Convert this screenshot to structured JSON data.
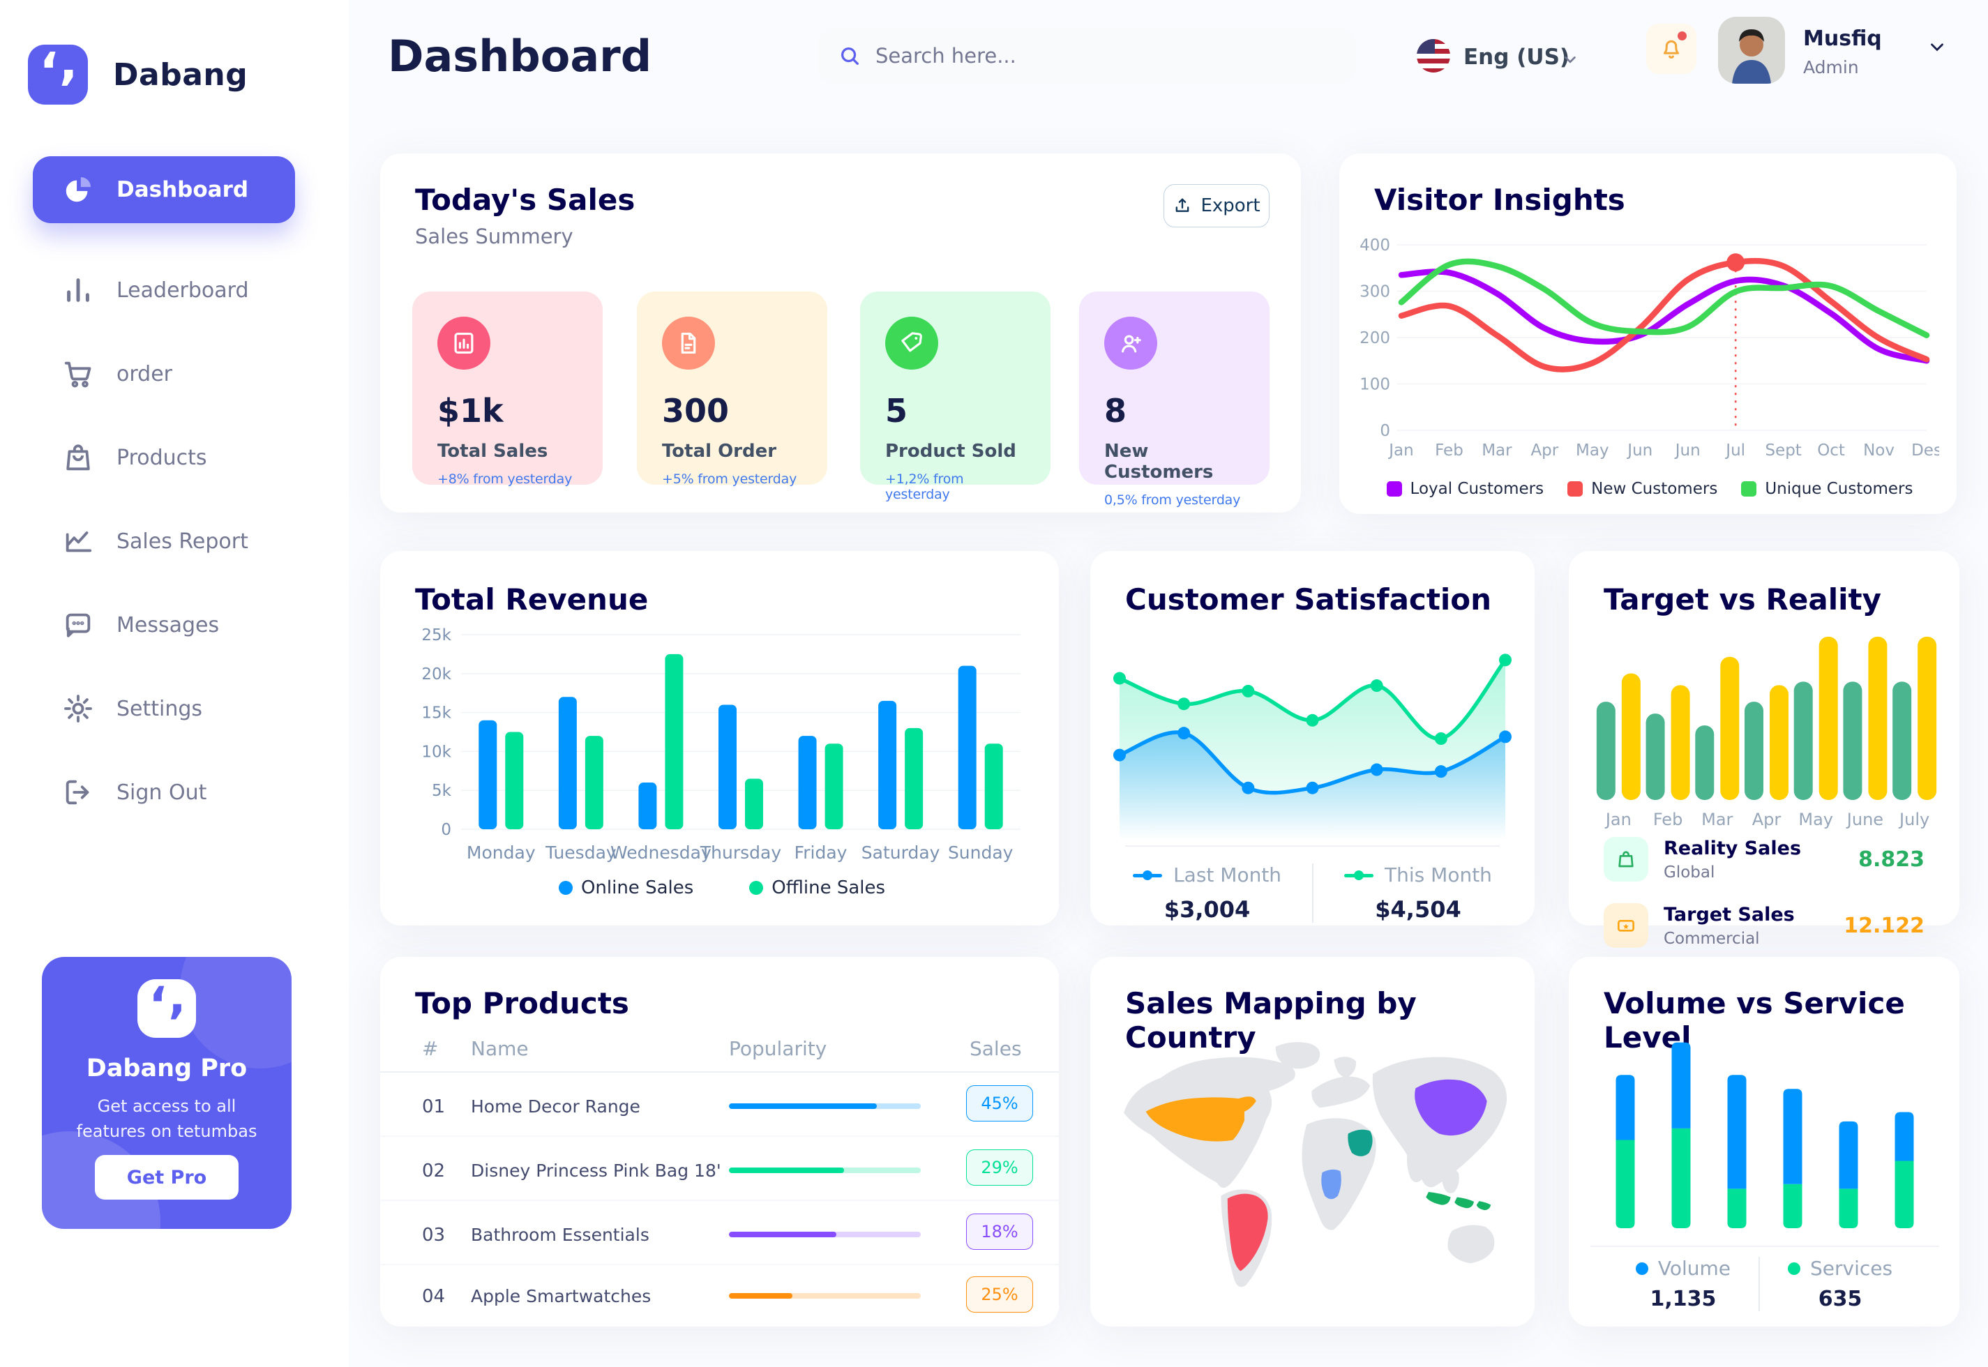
{
  "app": {
    "page_bg": "#FAFBFF",
    "card_bg": "#FFFFFF",
    "accent": "#5D5FEF",
    "navy": "#151D48",
    "gray_text": "#737791",
    "axis_text": "#96A5B8"
  },
  "sidebar": {
    "logo_label": "Dabang",
    "active_item": {
      "label": "Dashboard",
      "icon": "pie-chart-icon"
    },
    "items": [
      {
        "label": "Leaderboard",
        "icon": "bar-chart-icon"
      },
      {
        "label": "order",
        "icon": "cart-icon"
      },
      {
        "label": "Products",
        "icon": "bag-icon"
      },
      {
        "label": "Sales Report",
        "icon": "line-chart-icon"
      },
      {
        "label": "Messages",
        "icon": "message-icon"
      },
      {
        "label": "Settings",
        "icon": "gear-icon"
      },
      {
        "label": "Sign Out",
        "icon": "sign-out-icon"
      }
    ],
    "pro_card": {
      "title": "Dabang Pro",
      "description": "Get access to all features on tetumbas",
      "cta": "Get Pro"
    }
  },
  "header": {
    "title": "Dashboard",
    "search_placeholder": "Search here...",
    "language": "Eng (US)",
    "user_name": "Musfiq",
    "user_role": "Admin",
    "has_notification": true
  },
  "todays_sales": {
    "title": "Today's Sales",
    "subtitle": "Sales Summery",
    "export_label": "Export",
    "cards": [
      {
        "value": "$1k",
        "label": "Total Sales",
        "delta": "+8% from yesterday",
        "bg": "#FFE2E5",
        "icon_bg": "#FA5A7D",
        "icon": "bar-chart-doc-icon"
      },
      {
        "value": "300",
        "label": "Total Order",
        "delta": "+5% from yesterday",
        "bg": "#FFF4DE",
        "icon_bg": "#FF947A",
        "icon": "file-icon"
      },
      {
        "value": "5",
        "label": "Product Sold",
        "delta": "+1,2% from yesterday",
        "bg": "#DCFCE7",
        "icon_bg": "#3CD856",
        "icon": "tag-icon"
      },
      {
        "value": "8",
        "label": "New Customers",
        "delta": "0,5% from yesterday",
        "bg": "#F3E8FF",
        "icon_bg": "#BF83FF",
        "icon": "user-plus-icon"
      }
    ]
  },
  "chart_data": [
    {
      "name": "visitor_insights",
      "type": "line",
      "title": "Visitor Insights",
      "x": [
        "Jan",
        "Feb",
        "Mar",
        "Apr",
        "May",
        "Jun",
        "Jun",
        "Jul",
        "Sept",
        "Oct",
        "Nov",
        "Des"
      ],
      "ylim": [
        0,
        400
      ],
      "yticks": [
        0,
        100,
        200,
        300,
        400
      ],
      "grid": true,
      "legend_position": "bottom",
      "series": [
        {
          "name": "Loyal Customers",
          "color": "#A700FF",
          "values": [
            335,
            340,
            295,
            220,
            192,
            205,
            272,
            322,
            312,
            252,
            175,
            150
          ]
        },
        {
          "name": "New Customers",
          "color": "#F64E4E",
          "values": [
            247,
            268,
            205,
            137,
            145,
            221,
            325,
            362,
            354,
            278,
            199,
            153
          ]
        },
        {
          "name": "Unique Customers",
          "color": "#3CD856",
          "values": [
            276,
            357,
            354,
            304,
            231,
            213,
            223,
            299,
            307,
            311,
            257,
            205
          ]
        }
      ],
      "marker": {
        "series": "New Customers",
        "x_index": 7,
        "value": 362,
        "color": "#F64E4E"
      }
    },
    {
      "name": "total_revenue",
      "type": "bar",
      "title": "Total Revenue",
      "categories": [
        "Monday",
        "Tuesday",
        "Wednesday",
        "Thursday",
        "Friday",
        "Saturday",
        "Sunday"
      ],
      "ylim": [
        0,
        25000
      ],
      "yticks": [
        "0",
        "5k",
        "10k",
        "15k",
        "20k",
        "25k"
      ],
      "grid": true,
      "legend_position": "bottom",
      "series": [
        {
          "name": "Online Sales",
          "color": "#0095FF",
          "values": [
            14000,
            17000,
            6000,
            16000,
            12000,
            16500,
            21000
          ]
        },
        {
          "name": "Offline Sales",
          "color": "#00E096",
          "values": [
            12500,
            12000,
            22500,
            6500,
            11000,
            13000,
            11000
          ]
        }
      ]
    },
    {
      "name": "customer_satisfaction",
      "type": "area",
      "title": "Customer Satisfaction",
      "ylim": [
        0,
        100
      ],
      "grid": false,
      "legend_position": "bottom",
      "series": [
        {
          "name": "Last Month",
          "color": "#0095FF",
          "total": "$3,004",
          "values": [
            41,
            53,
            23,
            23,
            33,
            32,
            51
          ]
        },
        {
          "name": "This Month",
          "color": "#00E096",
          "total": "$4,504",
          "values": [
            83,
            69,
            76,
            60,
            79,
            50,
            93
          ]
        }
      ]
    },
    {
      "name": "target_vs_reality",
      "type": "bar",
      "title": "Target vs Reality",
      "categories": [
        "Jan",
        "Feb",
        "Mar",
        "Apr",
        "May",
        "June",
        "July"
      ],
      "ylim": [
        0,
        14.5
      ],
      "grid": false,
      "legend_position": "bottom",
      "series": [
        {
          "name": "Reality Sales",
          "color": "#4AB58E",
          "values": [
            8.3,
            7.3,
            6.3,
            8.3,
            10,
            10,
            10
          ]
        },
        {
          "name": "Target Sales",
          "color": "#FFCF00",
          "values": [
            10.7,
            9.7,
            12.1,
            9.7,
            13.8,
            13.8,
            13.8
          ]
        }
      ],
      "legend": [
        {
          "name": "Reality Sales",
          "sub": "Global",
          "value": "8.823",
          "value_color": "#27AE60",
          "icon_bg": "#E2FFF3",
          "icon": "bag-icon"
        },
        {
          "name": "Target Sales",
          "sub": "Commercial",
          "value": "12.122",
          "value_color": "#FFA412",
          "icon_bg": "#FFF2D8",
          "icon": "ticket-icon"
        }
      ]
    },
    {
      "name": "volume_vs_service",
      "type": "stacked-bar",
      "title": "Volume vs Service Level",
      "ylim": [
        0,
        85
      ],
      "grid": false,
      "legend_position": "bottom",
      "series": [
        {
          "name": "Volume",
          "color": "#0095FF",
          "total": "1,135",
          "values": [
            28,
            37,
            49,
            41,
            29,
            21
          ]
        },
        {
          "name": "Services",
          "color": "#00E096",
          "total": "635",
          "values": [
            38,
            43,
            17,
            19,
            17,
            29
          ]
        }
      ]
    }
  ],
  "top_products": {
    "title": "Top Products",
    "columns": [
      "#",
      "Name",
      "Popularity",
      "Sales"
    ],
    "rows": [
      {
        "id": "01",
        "name": "Home Decor Range",
        "popularity": 77,
        "sales": "45%",
        "color": "#0095FF"
      },
      {
        "id": "02",
        "name": "Disney Princess Pink Bag 18'",
        "popularity": 60,
        "sales": "29%",
        "color": "#00E096"
      },
      {
        "id": "03",
        "name": "Bathroom Essentials",
        "popularity": 56,
        "sales": "18%",
        "color": "#884DFF"
      },
      {
        "id": "04",
        "name": "Apple Smartwatches",
        "popularity": 33,
        "sales": "25%",
        "color": "#FF8F0D"
      }
    ]
  },
  "sales_map": {
    "title": "Sales Mapping by Country",
    "countries": [
      {
        "name": "United States",
        "color": "#FFA412"
      },
      {
        "name": "Brazil",
        "color": "#F64E60"
      },
      {
        "name": "DR Congo",
        "color": "#6E9BF4"
      },
      {
        "name": "Saudi Arabia",
        "color": "#12A18C"
      },
      {
        "name": "China",
        "color": "#8950FC"
      },
      {
        "name": "Indonesia",
        "color": "#16B364"
      }
    ]
  }
}
